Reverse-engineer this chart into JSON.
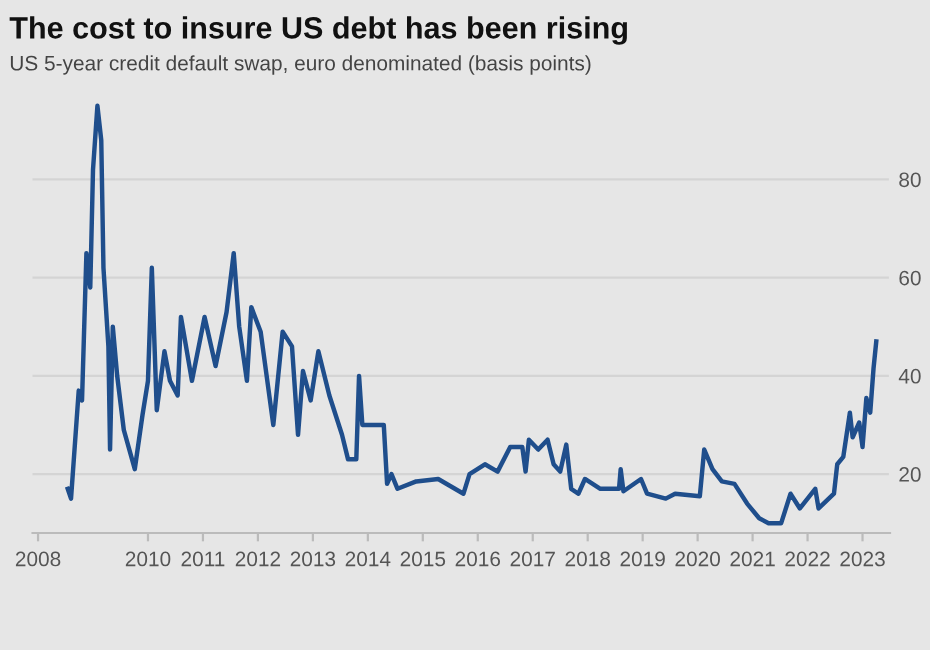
{
  "chart_data": {
    "type": "line",
    "title": "The cost to insure US debt has been rising",
    "subtitle": "US 5-year credit default swap, euro denominated (basis points)",
    "series": [
      {
        "color": "#1f4e8c",
        "x": [
          2008.54,
          2008.6,
          2008.74,
          2008.8,
          2008.88,
          2008.95,
          2009.0,
          2009.08,
          2009.15,
          2009.19,
          2009.28,
          2009.31,
          2009.36,
          2009.44,
          2009.56,
          2009.76,
          2009.9,
          2010.0,
          2010.07,
          2010.16,
          2010.3,
          2010.4,
          2010.54,
          2010.6,
          2010.8,
          2011.03,
          2011.23,
          2011.43,
          2011.56,
          2011.66,
          2011.8,
          2011.88,
          2012.05,
          2012.28,
          2012.45,
          2012.62,
          2012.73,
          2012.82,
          2012.96,
          2013.1,
          2013.3,
          2013.53,
          2013.64,
          2013.79,
          2013.84,
          2013.9,
          2014.29,
          2014.35,
          2014.43,
          2014.54,
          2014.88,
          2015.28,
          2015.74,
          2015.85,
          2016.13,
          2016.36,
          2016.59,
          2016.81,
          2016.87,
          2016.93,
          2017.1,
          2017.27,
          2017.38,
          2017.5,
          2017.61,
          2017.7,
          2017.83,
          2017.95,
          2018.23,
          2018.57,
          2018.6,
          2018.65,
          2018.97,
          2019.08,
          2019.42,
          2019.59,
          2020.04,
          2020.12,
          2020.27,
          2020.44,
          2020.67,
          2020.9,
          2021.12,
          2021.29,
          2021.52,
          2021.69,
          2021.86,
          2022.14,
          2022.2,
          2022.48,
          2022.54,
          2022.65,
          2022.77,
          2022.82,
          2022.94,
          2023.0,
          2023.07,
          2023.14,
          2023.2,
          2023.25
        ],
        "values": [
          17,
          15,
          37,
          35,
          65,
          58,
          82,
          95,
          88,
          62,
          46,
          25,
          50,
          40,
          29,
          21,
          32,
          39,
          62,
          33,
          45,
          39,
          36,
          52,
          39,
          52,
          42,
          53,
          65,
          50,
          39,
          54,
          49,
          30,
          49,
          46,
          28,
          41,
          35,
          45,
          36,
          28,
          23,
          23,
          40,
          30,
          30,
          18,
          20,
          17,
          18.5,
          19,
          16,
          20,
          22,
          20.5,
          25.5,
          25.5,
          20.5,
          27,
          25,
          27,
          22,
          20.5,
          26,
          17,
          16,
          19,
          17,
          17,
          21,
          16.5,
          19,
          16,
          15,
          16,
          15.5,
          25,
          21,
          18.5,
          18,
          14,
          11,
          10,
          10,
          16,
          13,
          17,
          13,
          16,
          22,
          23.5,
          32.5,
          27.5,
          30.5,
          25.5,
          35.5,
          32.5,
          41.5,
          47
        ]
      }
    ],
    "xlim": [
      2007.9,
      2023.5
    ],
    "xticks": [
      2008,
      2010,
      2011,
      2012,
      2013,
      2014,
      2015,
      2016,
      2017,
      2018,
      2019,
      2020,
      2021,
      2022,
      2023
    ],
    "ylim": [
      8,
      100
    ],
    "yticks": [
      20,
      40,
      60,
      80
    ],
    "grid": "y",
    "marker": "none",
    "line_style": "solid",
    "legend": false
  }
}
